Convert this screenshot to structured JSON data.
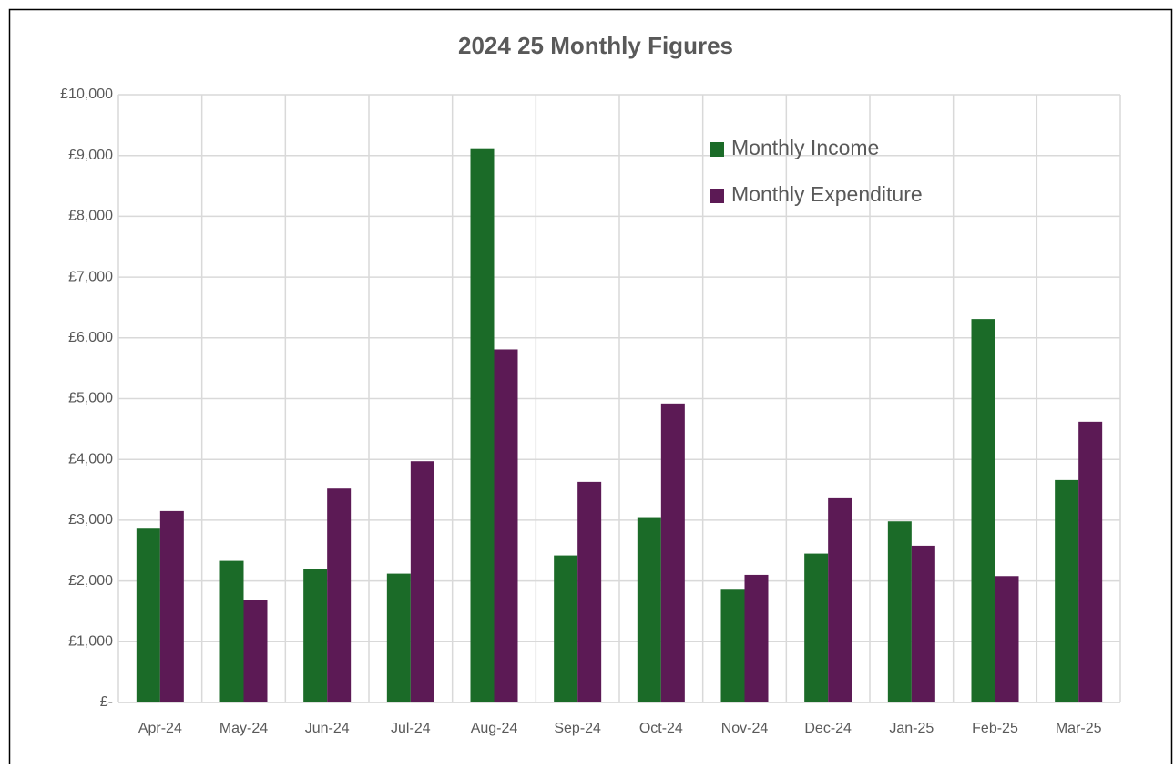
{
  "chart_data": {
    "type": "bar",
    "title": "2024 25 Monthly Figures",
    "categories": [
      "Apr-24",
      "May-24",
      "Jun-24",
      "Jul-24",
      "Aug-24",
      "Sep-24",
      "Oct-24",
      "Nov-24",
      "Dec-24",
      "Jan-25",
      "Feb-25",
      "Mar-25"
    ],
    "series": [
      {
        "name": "Monthly Income",
        "color": "#1b6b28",
        "values": [
          2860,
          2330,
          2200,
          2120,
          9120,
          2420,
          3050,
          1870,
          2450,
          2980,
          6310,
          3660
        ]
      },
      {
        "name": "Monthly Expenditure",
        "color": "#5c1a55",
        "values": [
          3150,
          1690,
          3520,
          3970,
          5810,
          3630,
          4920,
          2100,
          3360,
          2580,
          2080,
          4620
        ]
      }
    ],
    "ylim": [
      0,
      10000
    ],
    "yticks": [
      {
        "value": 0,
        "label": "£-"
      },
      {
        "value": 1000,
        "label": "£1,000"
      },
      {
        "value": 2000,
        "label": "£2,000"
      },
      {
        "value": 3000,
        "label": "£3,000"
      },
      {
        "value": 4000,
        "label": "£4,000"
      },
      {
        "value": 5000,
        "label": "£5,000"
      },
      {
        "value": 6000,
        "label": "£6,000"
      },
      {
        "value": 7000,
        "label": "£7,000"
      },
      {
        "value": 8000,
        "label": "£8,000"
      },
      {
        "value": 9000,
        "label": "£9,000"
      },
      {
        "value": 10000,
        "label": "£10,000"
      }
    ],
    "grid": true,
    "legend": "top-right"
  }
}
